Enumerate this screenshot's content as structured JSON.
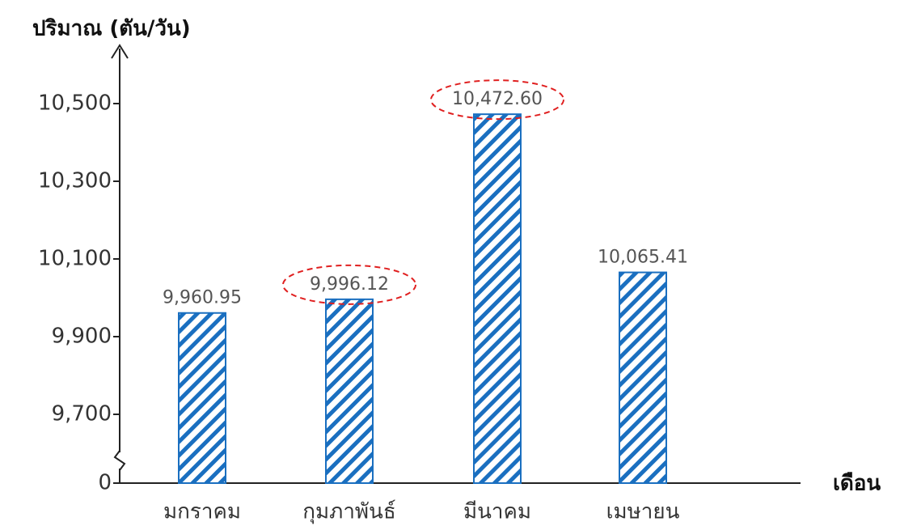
{
  "chart_data": {
    "type": "bar",
    "y_label": "ปริมาณ (ตัน/วัน)",
    "x_label": "เดือน",
    "categories": [
      "มกราคม",
      "กุมภาพันธ์",
      "มีนาคม",
      "เมษายน"
    ],
    "values": [
      9960.95,
      9996.12,
      10472.6,
      10065.41
    ],
    "value_labels": [
      "9,960.95",
      "9,996.12",
      "10,472.60",
      "10,065.41"
    ],
    "color": "#1a6fc0",
    "ylim": [
      0,
      10600
    ],
    "ybreak": [
      0,
      9700
    ],
    "yticks": [
      0,
      {
        "value": 9700,
        "label": "9,700"
      },
      {
        "value": 9900,
        "label": "9,900"
      },
      {
        "value": 10100,
        "label": "10,100"
      },
      {
        "value": 10300,
        "label": "10,300"
      },
      {
        "value": 10500,
        "label": "10,500"
      }
    ],
    "highlighted": [
      1,
      2
    ],
    "highlight_color": "#e02020"
  }
}
